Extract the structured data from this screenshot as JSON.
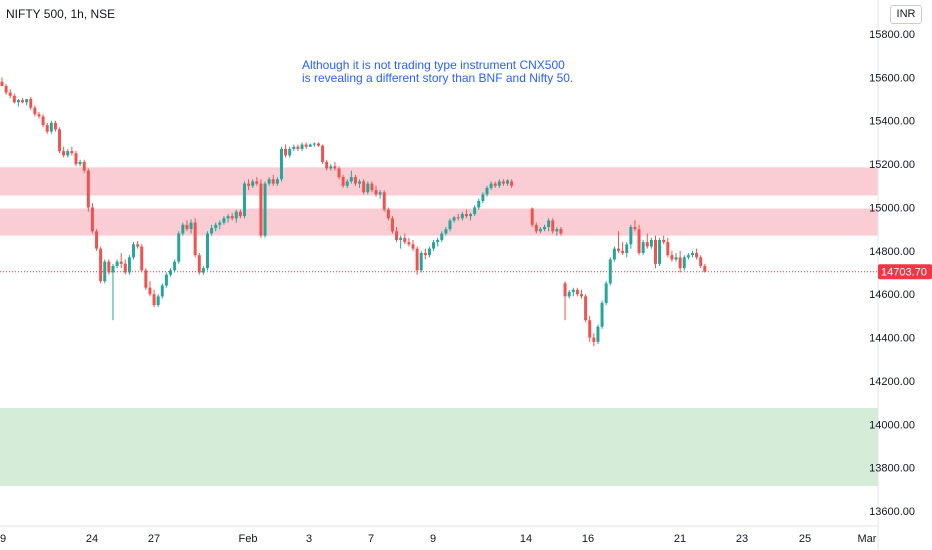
{
  "chart_title": "NIFTY 500, 1h, NSE",
  "currency": "INR",
  "annotation": {
    "line1": "Although it is not trading type instrument CNX500",
    "line2": "is revealing a different story than BNF and Nifty 50."
  },
  "chart_data": {
    "type": "candlestick",
    "title": "NIFTY 500, 1h, NSE",
    "y_ticks": [
      15800,
      15600,
      15400,
      15200,
      15000,
      14800,
      14600,
      14400,
      14200,
      14000,
      13800,
      13600
    ],
    "y_tick_labels": [
      "15800.00",
      "15600.00",
      "15400.00",
      "15200.00",
      "15000.00",
      "14800.00",
      "14600.00",
      "14400.00",
      "14200.00",
      "14000.00",
      "13800.00",
      "13600.00"
    ],
    "ylim": [
      13540,
      15890
    ],
    "x_labels": [
      "9",
      "24",
      "27",
      "Feb",
      "3",
      "7",
      "9",
      "14",
      "16",
      "21",
      "23",
      "25",
      "Mar"
    ],
    "last_price": 14703.7,
    "last_price_label": "14703.70",
    "colors": {
      "up": "#26a69a",
      "down": "#ef5350",
      "resistance_zone": "#f9cdd3",
      "support_zone": "#d5edd8",
      "last_price": "#f23645"
    },
    "zones": [
      {
        "type": "resistance",
        "y_low": 15055,
        "y_high": 15185
      },
      {
        "type": "resistance",
        "y_low": 14870,
        "y_high": 14995
      },
      {
        "type": "support",
        "y_low": 13715,
        "y_high": 14075
      }
    ],
    "candles": [
      [
        15580,
        15600,
        15560,
        15560
      ],
      [
        15560,
        15570,
        15520,
        15530
      ],
      [
        15530,
        15545,
        15505,
        15515
      ],
      [
        15515,
        15525,
        15480,
        15485
      ],
      [
        15485,
        15500,
        15465,
        15495
      ],
      [
        15495,
        15505,
        15480,
        15485
      ],
      [
        15485,
        15500,
        15470,
        15500
      ],
      [
        15500,
        15510,
        15450,
        15460
      ],
      [
        15460,
        15470,
        15420,
        15430
      ],
      [
        15430,
        15440,
        15410,
        15420
      ],
      [
        15420,
        15430,
        15370,
        15380
      ],
      [
        15380,
        15390,
        15340,
        15350
      ],
      [
        15350,
        15400,
        15340,
        15390
      ],
      [
        15390,
        15400,
        15350,
        15360
      ],
      [
        15360,
        15370,
        15250,
        15260
      ],
      [
        15260,
        15280,
        15230,
        15240
      ],
      [
        15240,
        15270,
        15230,
        15260
      ],
      [
        15260,
        15280,
        15240,
        15250
      ],
      [
        15250,
        15260,
        15190,
        15200
      ],
      [
        15200,
        15220,
        15190,
        15210
      ],
      [
        15210,
        15220,
        15160,
        15170
      ],
      [
        15170,
        15180,
        14980,
        15000
      ],
      [
        15000,
        15020,
        14880,
        14890
      ],
      [
        14890,
        14900,
        14800,
        14810
      ],
      [
        14810,
        14820,
        14650,
        14660
      ],
      [
        14660,
        14760,
        14650,
        14750
      ],
      [
        14750,
        14760,
        14690,
        14700
      ],
      [
        14700,
        14740,
        14480,
        14730
      ],
      [
        14730,
        14760,
        14720,
        14750
      ],
      [
        14750,
        14790,
        14720,
        14740
      ],
      [
        14740,
        14760,
        14690,
        14700
      ],
      [
        14700,
        14780,
        14690,
        14770
      ],
      [
        14770,
        14840,
        14760,
        14830
      ],
      [
        14830,
        14845,
        14810,
        14820
      ],
      [
        14820,
        14830,
        14700,
        14710
      ],
      [
        14710,
        14720,
        14620,
        14630
      ],
      [
        14630,
        14660,
        14590,
        14600
      ],
      [
        14600,
        14620,
        14540,
        14550
      ],
      [
        14550,
        14600,
        14540,
        14590
      ],
      [
        14590,
        14650,
        14580,
        14640
      ],
      [
        14640,
        14700,
        14630,
        14690
      ],
      [
        14690,
        14720,
        14680,
        14710
      ],
      [
        14710,
        14760,
        14700,
        14750
      ],
      [
        14750,
        14890,
        14740,
        14880
      ],
      [
        14880,
        14930,
        14870,
        14920
      ],
      [
        14920,
        14940,
        14890,
        14900
      ],
      [
        14900,
        14945,
        14880,
        14930
      ],
      [
        14930,
        14950,
        14770,
        14780
      ],
      [
        14780,
        14790,
        14690,
        14700
      ],
      [
        14700,
        14730,
        14690,
        14720
      ],
      [
        14720,
        14890,
        14710,
        14880
      ],
      [
        14880,
        14920,
        14870,
        14905
      ],
      [
        14905,
        14930,
        14890,
        14920
      ],
      [
        14920,
        14940,
        14900,
        14930
      ],
      [
        14930,
        14960,
        14920,
        14950
      ],
      [
        14950,
        14970,
        14930,
        14960
      ],
      [
        14960,
        14975,
        14940,
        14950
      ],
      [
        14950,
        14990,
        14930,
        14980
      ],
      [
        14980,
        14990,
        14950,
        14960
      ],
      [
        14960,
        15120,
        14950,
        15110
      ],
      [
        15110,
        15130,
        15080,
        15100
      ],
      [
        15100,
        15130,
        15090,
        15120
      ],
      [
        15120,
        15140,
        15100,
        15110
      ],
      [
        15110,
        15130,
        14860,
        14870
      ],
      [
        14870,
        15120,
        14860,
        15110
      ],
      [
        15110,
        15140,
        15100,
        15130
      ],
      [
        15130,
        15150,
        15100,
        15110
      ],
      [
        15110,
        15140,
        15100,
        15130
      ],
      [
        15130,
        15280,
        15120,
        15270
      ],
      [
        15270,
        15290,
        15230,
        15240
      ],
      [
        15240,
        15280,
        15230,
        15270
      ],
      [
        15270,
        15290,
        15260,
        15280
      ],
      [
        15280,
        15290,
        15260,
        15270
      ],
      [
        15270,
        15300,
        15260,
        15290
      ],
      [
        15290,
        15300,
        15270,
        15280
      ],
      [
        15280,
        15295,
        15280,
        15290
      ],
      [
        15290,
        15300,
        15280,
        15295
      ],
      [
        15295,
        15300,
        15280,
        15285
      ],
      [
        15285,
        15290,
        15200,
        15210
      ],
      [
        15210,
        15220,
        15170,
        15180
      ],
      [
        15180,
        15200,
        15170,
        15190
      ],
      [
        15190,
        15210,
        15170,
        15180
      ],
      [
        15180,
        15190,
        15130,
        15140
      ],
      [
        15140,
        15150,
        15090,
        15100
      ],
      [
        15100,
        15130,
        15090,
        15120
      ],
      [
        15120,
        15170,
        15110,
        15140
      ],
      [
        15140,
        15150,
        15100,
        15110
      ],
      [
        15110,
        15130,
        15090,
        15120
      ],
      [
        15120,
        15130,
        15060,
        15070
      ],
      [
        15070,
        15120,
        15060,
        15110
      ],
      [
        15110,
        15120,
        15070,
        15080
      ],
      [
        15080,
        15100,
        15050,
        15060
      ],
      [
        15060,
        15080,
        15040,
        15070
      ],
      [
        15070,
        15080,
        14980,
        14990
      ],
      [
        14990,
        15000,
        14940,
        14950
      ],
      [
        14950,
        14960,
        14880,
        14890
      ],
      [
        14890,
        14910,
        14840,
        14850
      ],
      [
        14850,
        14870,
        14810,
        14860
      ],
      [
        14860,
        14880,
        14830,
        14840
      ],
      [
        14840,
        14860,
        14820,
        14830
      ],
      [
        14830,
        14850,
        14800,
        14810
      ],
      [
        14810,
        14820,
        14690,
        14710
      ],
      [
        14710,
        14800,
        14700,
        14790
      ],
      [
        14790,
        14810,
        14760,
        14780
      ],
      [
        14780,
        14820,
        14770,
        14810
      ],
      [
        14810,
        14850,
        14800,
        14840
      ],
      [
        14840,
        14860,
        14820,
        14850
      ],
      [
        14850,
        14890,
        14840,
        14880
      ],
      [
        14880,
        14910,
        14870,
        14900
      ],
      [
        14900,
        14950,
        14890,
        14940
      ],
      [
        14940,
        14960,
        14930,
        14955
      ],
      [
        14955,
        14970,
        14940,
        14950
      ],
      [
        14950,
        14980,
        14940,
        14970
      ],
      [
        14970,
        14990,
        14950,
        14960
      ],
      [
        14960,
        14975,
        14940,
        14970
      ],
      [
        14970,
        15010,
        14960,
        15000
      ],
      [
        15000,
        15040,
        14990,
        15030
      ],
      [
        15030,
        15070,
        15020,
        15060
      ],
      [
        15060,
        15100,
        15050,
        15090
      ],
      [
        15090,
        15120,
        15080,
        15110
      ],
      [
        15110,
        15120,
        15090,
        15100
      ],
      [
        15100,
        15130,
        15090,
        15120
      ],
      [
        15120,
        15130,
        15100,
        15110
      ],
      [
        15110,
        15130,
        15100,
        15125
      ],
      [
        15120,
        15130,
        15090,
        15100
      ],
      [
        14995,
        15000,
        14910,
        14920
      ],
      [
        14920,
        14930,
        14880,
        14890
      ],
      [
        14890,
        14910,
        14880,
        14900
      ],
      [
        14900,
        14920,
        14890,
        14910
      ],
      [
        14910,
        14950,
        14890,
        14940
      ],
      [
        14940,
        14950,
        14880,
        14890
      ],
      [
        14890,
        14910,
        14870,
        14900
      ],
      [
        14900,
        14910,
        14870,
        14880
      ],
      [
        14650,
        14660,
        14480,
        14590
      ],
      [
        14590,
        14620,
        14580,
        14610
      ],
      [
        14610,
        14630,
        14590,
        14620
      ],
      [
        14620,
        14630,
        14590,
        14600
      ],
      [
        14600,
        14620,
        14580,
        14590
      ],
      [
        14590,
        14600,
        14470,
        14480
      ],
      [
        14480,
        14500,
        14380,
        14400
      ],
      [
        14400,
        14420,
        14360,
        14380
      ],
      [
        14380,
        14460,
        14370,
        14450
      ],
      [
        14450,
        14570,
        14440,
        14560
      ],
      [
        14560,
        14660,
        14550,
        14650
      ],
      [
        14650,
        14770,
        14640,
        14760
      ],
      [
        14760,
        14820,
        14750,
        14810
      ],
      [
        14810,
        14890,
        14790,
        14800
      ],
      [
        14800,
        14840,
        14780,
        14790
      ],
      [
        14790,
        14840,
        14770,
        14830
      ],
      [
        14830,
        14920,
        14810,
        14910
      ],
      [
        14910,
        14940,
        14890,
        14900
      ],
      [
        14900,
        14920,
        14780,
        14790
      ],
      [
        14790,
        14850,
        14780,
        14840
      ],
      [
        14840,
        14880,
        14810,
        14820
      ],
      [
        14820,
        14860,
        14810,
        14850
      ],
      [
        14850,
        14870,
        14720,
        14740
      ],
      [
        14740,
        14860,
        14730,
        14850
      ],
      [
        14850,
        14870,
        14830,
        14840
      ],
      [
        14840,
        14860,
        14770,
        14780
      ],
      [
        14780,
        14800,
        14750,
        14760
      ],
      [
        14760,
        14790,
        14750,
        14770
      ],
      [
        14770,
        14800,
        14700,
        14720
      ],
      [
        14720,
        14780,
        14710,
        14770
      ],
      [
        14770,
        14790,
        14760,
        14780
      ],
      [
        14780,
        14800,
        14770,
        14790
      ],
      [
        14790,
        14810,
        14760,
        14770
      ],
      [
        14770,
        14780,
        14720,
        14730
      ],
      [
        14730,
        14740,
        14700,
        14704
      ]
    ]
  }
}
